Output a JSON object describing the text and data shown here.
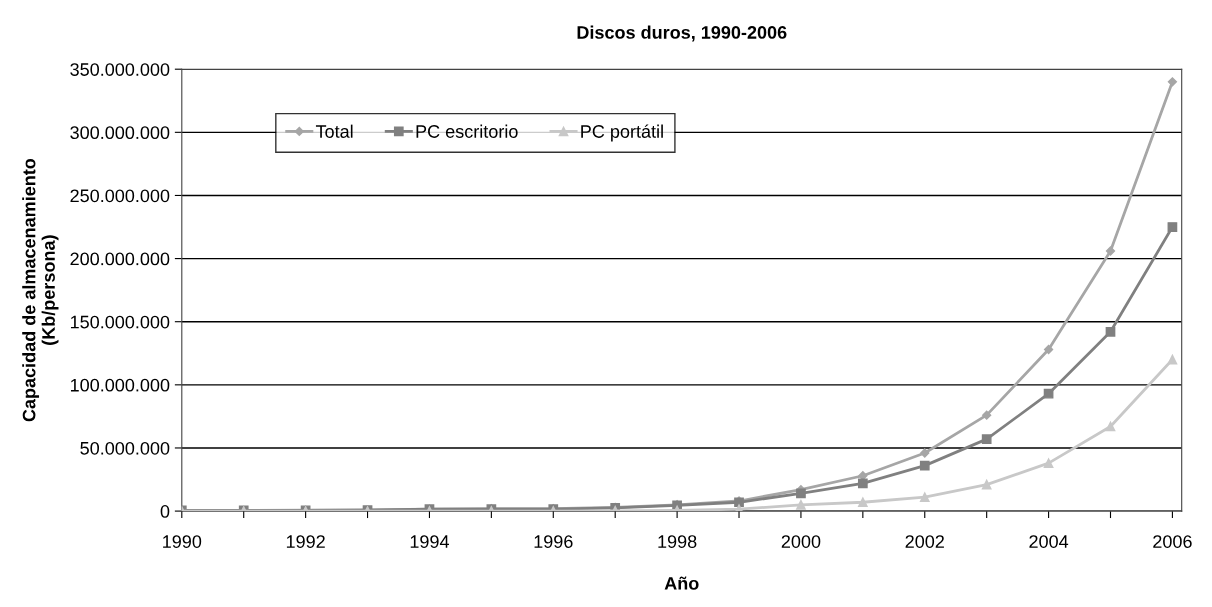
{
  "chart_data": {
    "type": "line",
    "title": "Discos duros, 1990-2006",
    "xlabel": "Año",
    "ylabel": "Capacidad de almacenamiento\n(Kb/persona)",
    "x": [
      1990,
      1991,
      1992,
      1993,
      1994,
      1995,
      1996,
      1997,
      1998,
      1999,
      2000,
      2001,
      2002,
      2003,
      2004,
      2005,
      2006
    ],
    "series": [
      {
        "name": "Total",
        "color": "#a6a6a6",
        "marker": "diamond",
        "values": [
          500000,
          500000,
          700000,
          1000000,
          1500000,
          2000000,
          2000000,
          3000000,
          5000000,
          8000000,
          17000000,
          28000000,
          46000000,
          76000000,
          128000000,
          206000000,
          340000000
        ]
      },
      {
        "name": "PC escritorio",
        "color": "#808080",
        "marker": "square",
        "values": [
          500000,
          500000,
          600000,
          800000,
          1500000,
          1500000,
          1500000,
          2500000,
          4500000,
          7000000,
          14000000,
          22000000,
          36000000,
          57000000,
          93000000,
          142000000,
          225000000
        ]
      },
      {
        "name": "PC portátil",
        "color": "#c8c8c8",
        "marker": "triangle",
        "values": [
          0,
          0,
          0,
          0,
          0,
          0,
          0,
          200000,
          500000,
          1500000,
          5000000,
          7000000,
          11000000,
          21000000,
          38000000,
          67000000,
          120000000
        ]
      }
    ],
    "xlim": [
      1990,
      2006.15
    ],
    "xticks": [
      1990,
      {
        "value": 1991,
        "label": null
      },
      1992,
      {
        "value": 1993,
        "label": null
      },
      1994,
      {
        "value": 1995,
        "label": null
      },
      1996,
      {
        "value": 1997,
        "label": null
      },
      1998,
      {
        "value": 1999,
        "label": null
      },
      2000,
      {
        "value": 2001,
        "label": null
      },
      2002,
      {
        "value": 2003,
        "label": null
      },
      2004,
      {
        "value": 2005,
        "label": null
      },
      2006
    ],
    "ylim": [
      0,
      350000000
    ],
    "yticks": [
      {
        "value": 0,
        "label": "0"
      },
      {
        "value": 50000000,
        "label": "50.000.000"
      },
      {
        "value": 100000000,
        "label": "100.000.000"
      },
      {
        "value": 150000000,
        "label": "150.000.000"
      },
      {
        "value": 200000000,
        "label": "200.000.000"
      },
      {
        "value": 250000000,
        "label": "250.000.000"
      },
      {
        "value": 300000000,
        "label": "300.000.000"
      },
      {
        "value": 350000000,
        "label": "350.000.000"
      }
    ],
    "grid": "y",
    "legend": "top left",
    "line_style": "solid"
  }
}
